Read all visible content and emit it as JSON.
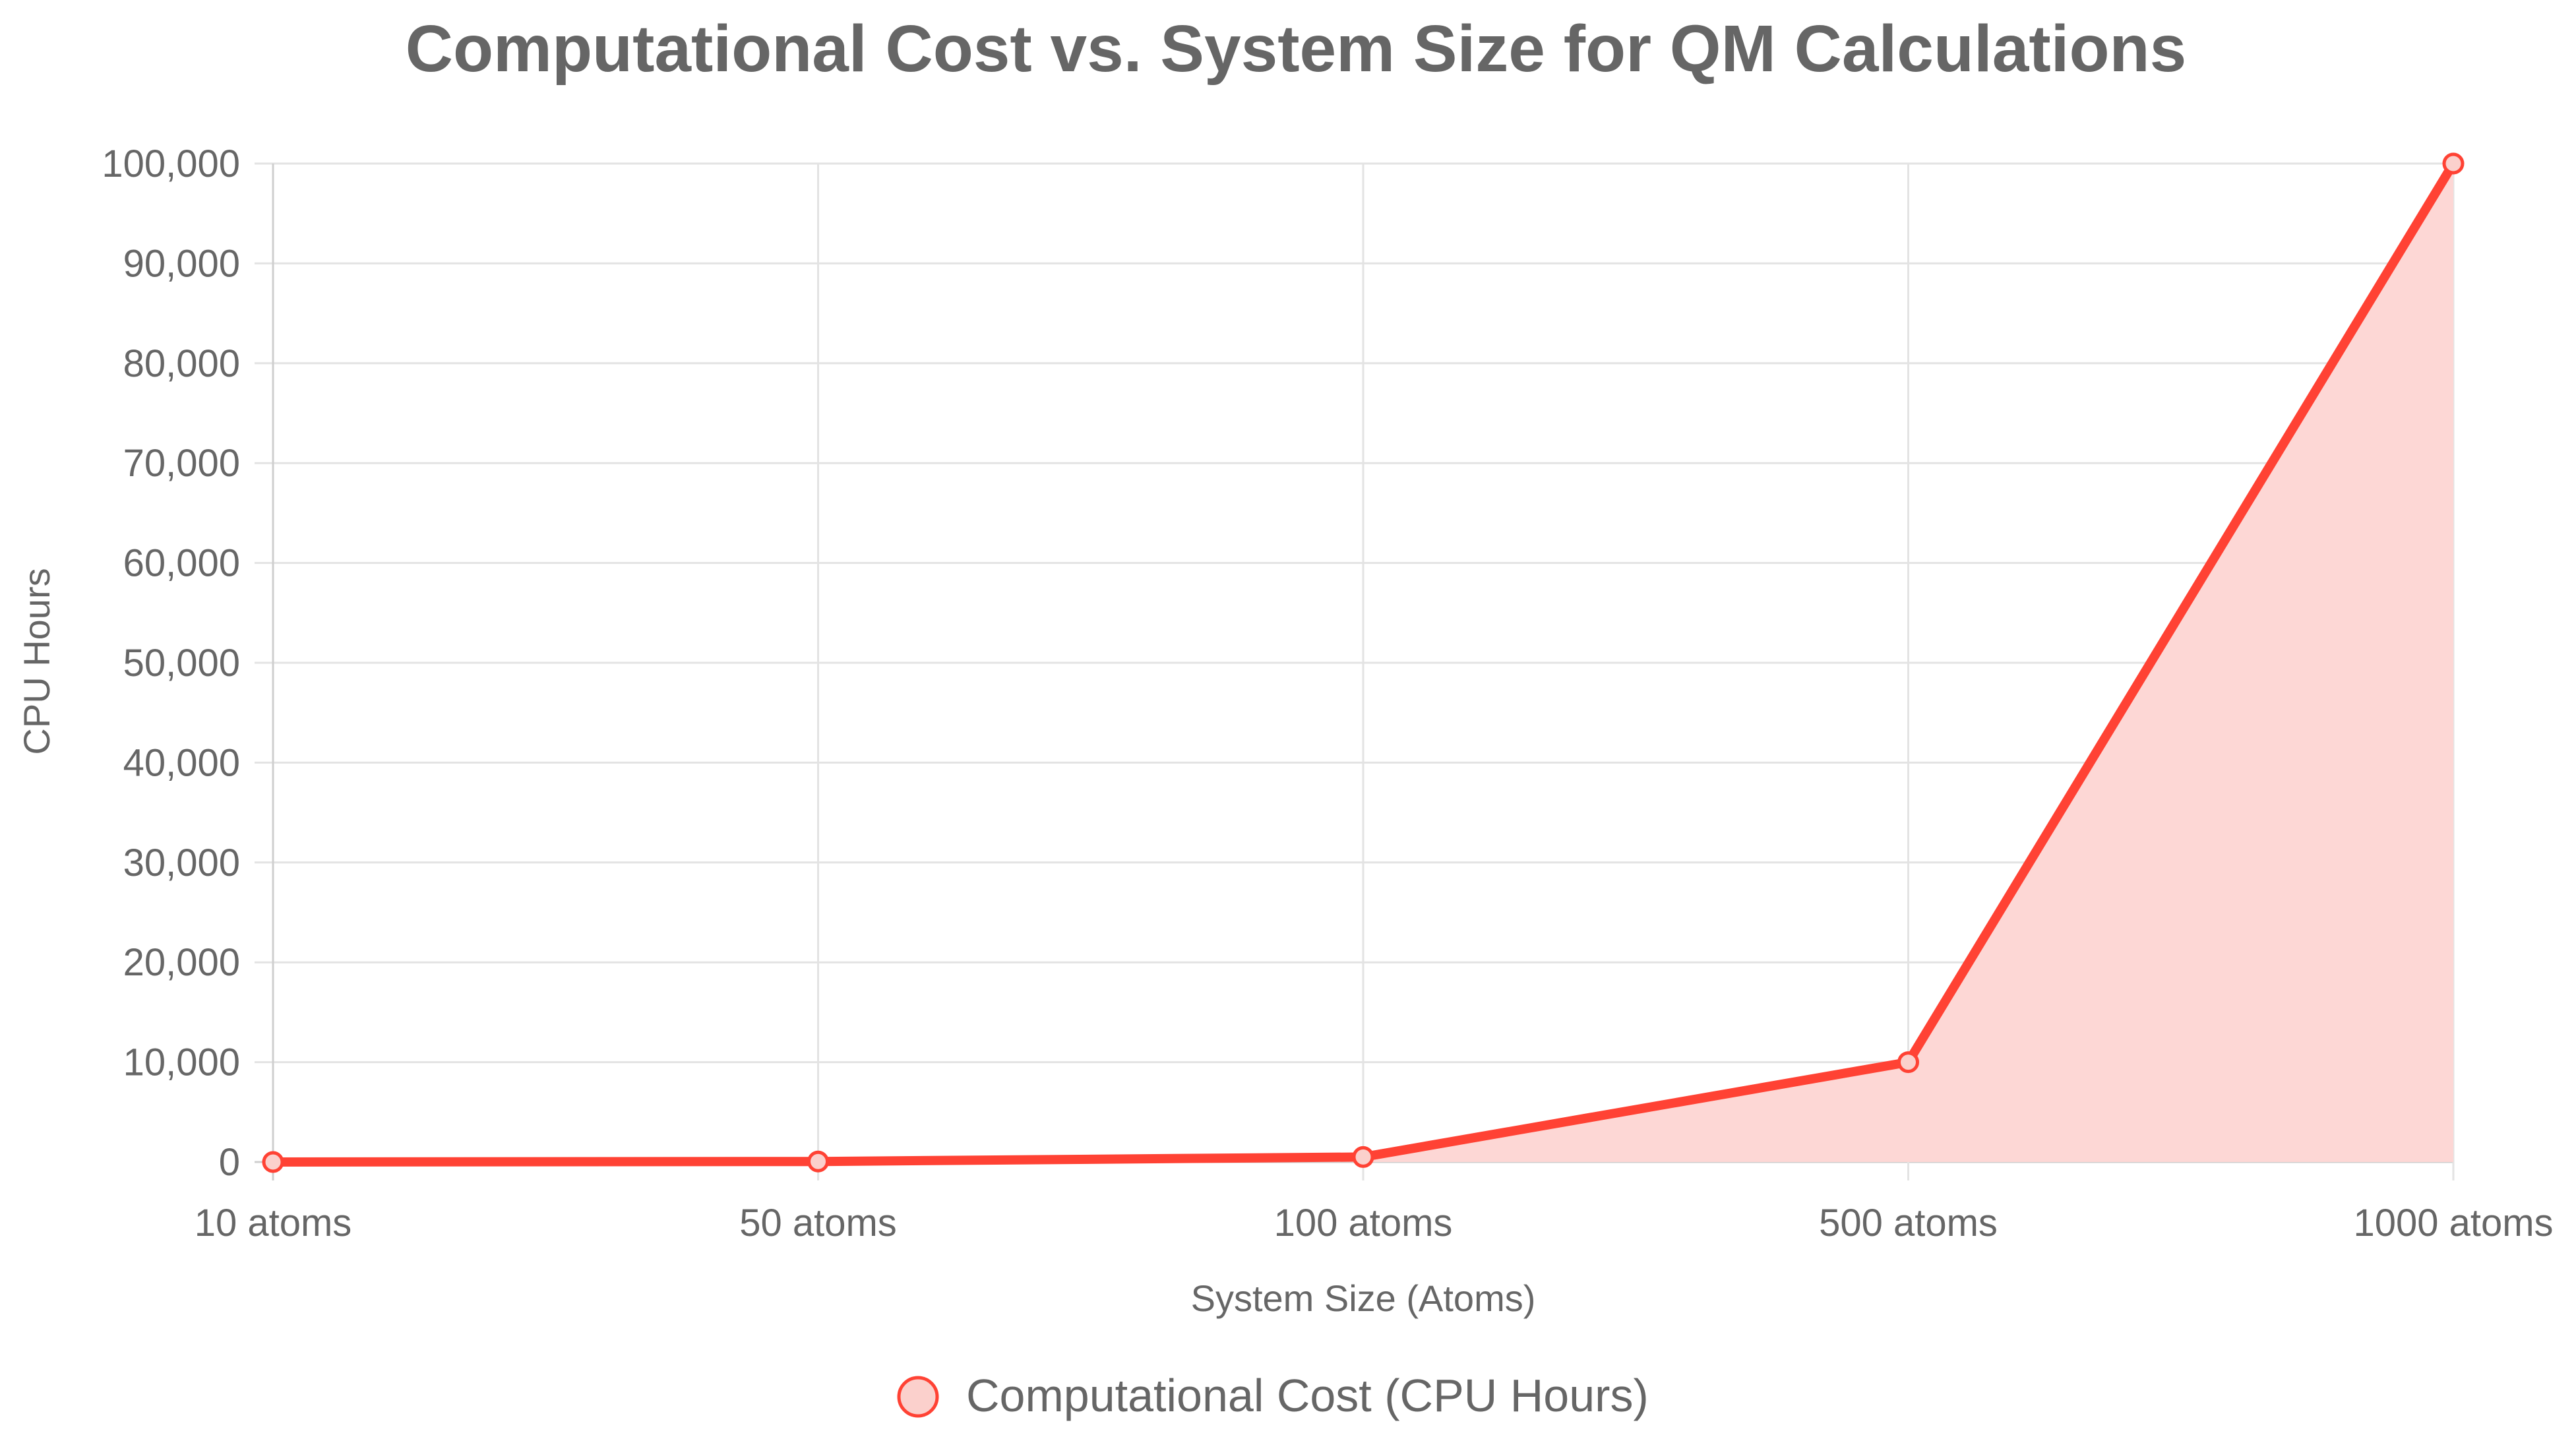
{
  "chart_data": {
    "type": "area",
    "title": "Computational Cost vs. System Size for QM Calculations",
    "xlabel": "System Size (Atoms)",
    "ylabel": "CPU Hours",
    "categories": [
      "10 atoms",
      "50 atoms",
      "100 atoms",
      "500 atoms",
      "1000 atoms"
    ],
    "series": [
      {
        "name": "Computational Cost (CPU Hours)",
        "values": [
          1,
          50,
          500,
          10000,
          100000
        ]
      }
    ],
    "ylim": [
      0,
      100000
    ],
    "yticks": [
      0,
      10000,
      20000,
      30000,
      40000,
      50000,
      60000,
      70000,
      80000,
      90000,
      100000
    ],
    "ytick_labels": [
      "0",
      "10,000",
      "20,000",
      "30,000",
      "40,000",
      "50,000",
      "60,000",
      "70,000",
      "80,000",
      "90,000",
      "100,000"
    ],
    "grid": true,
    "legend_position": "bottom",
    "colors": {
      "line": "#ff4234",
      "fill": "#fdd7d5",
      "point_fill": "#fbd0cc"
    }
  }
}
